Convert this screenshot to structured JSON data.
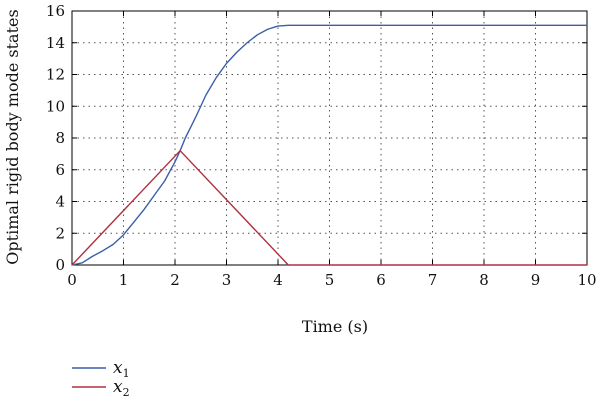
{
  "chart_data": {
    "type": "line",
    "xlabel": "Time (s)",
    "ylabel": "Optimal rigid body mode states",
    "xlim": [
      0,
      10
    ],
    "ylim": [
      0,
      16
    ],
    "x_ticks": [
      0,
      1,
      2,
      3,
      4,
      5,
      6,
      7,
      8,
      9,
      10
    ],
    "y_ticks": [
      0,
      2,
      4,
      6,
      8,
      10,
      12,
      14,
      16
    ],
    "grid": "dotted",
    "legend_placement": "below",
    "series": [
      {
        "name": "x",
        "subscript": "1",
        "color": "#3a5fa8",
        "x": [
          0,
          0.2,
          0.4,
          0.6,
          0.8,
          1.0,
          1.2,
          1.4,
          1.6,
          1.8,
          2.0,
          2.1,
          2.2,
          2.4,
          2.6,
          2.8,
          3.0,
          3.2,
          3.4,
          3.6,
          3.8,
          4.0,
          4.2,
          4.5,
          5,
          6,
          7,
          8,
          9,
          10
        ],
        "y": [
          0,
          0.14,
          0.55,
          0.9,
          1.3,
          1.9,
          2.7,
          3.5,
          4.4,
          5.3,
          6.5,
          7.2,
          8.0,
          9.3,
          10.7,
          11.8,
          12.7,
          13.4,
          14.0,
          14.5,
          14.85,
          15.05,
          15.1,
          15.1,
          15.1,
          15.1,
          15.1,
          15.1,
          15.1,
          15.1
        ]
      },
      {
        "name": "x",
        "subscript": "2",
        "color": "#b03040",
        "x": [
          0,
          2.1,
          4.2,
          10
        ],
        "y": [
          0,
          7.2,
          0,
          0
        ]
      }
    ]
  }
}
